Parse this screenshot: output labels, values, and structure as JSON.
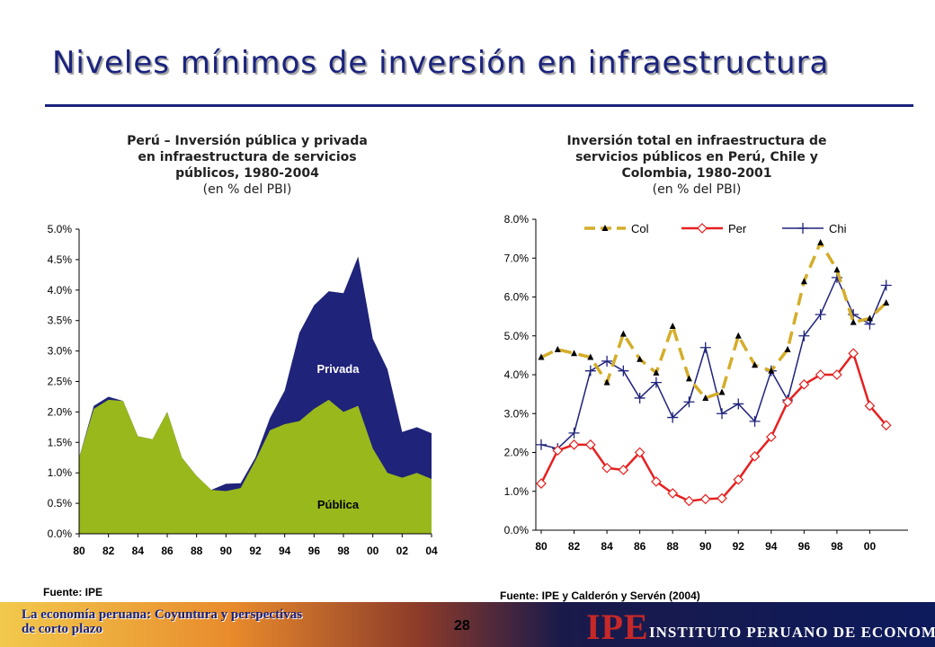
{
  "page": {
    "title": "Niveles mínimos de inversión en infraestructura",
    "footer_left_line1": "La economía peruana: Coyuntura y perspectivas",
    "footer_left_line2": "de corto plazo",
    "page_number": "28",
    "logo": "IPE",
    "institute_name": "INSTITUTO PERUANO DE ECONOMÍA"
  },
  "left_chart": {
    "title_lines": [
      "Perú – Inversión pública y privada",
      "en infraestructura de servicios",
      "públicos, 1980-2004"
    ],
    "unit": "(en % del PBI)",
    "source": "Fuente: IPE"
  },
  "right_chart": {
    "title_lines": [
      "Inversión total en infraestructura de",
      "servicios públicos en Perú, Chile y",
      "Colombia, 1980-2001"
    ],
    "unit": "(en % del PBI)",
    "source": "Fuente: IPE y Calderón y Servén (2004)"
  },
  "colors": {
    "publica": "#99b81c",
    "privada": "#1f237a",
    "col": "#d4ad2a",
    "per": "#e62020",
    "chi": "#1f237a",
    "title": "#1a237e"
  },
  "chart_data": [
    {
      "type": "area",
      "stacked": true,
      "x": [
        1980,
        1981,
        1982,
        1983,
        1984,
        1985,
        1986,
        1987,
        1988,
        1989,
        1990,
        1991,
        1992,
        1993,
        1994,
        1995,
        1996,
        1997,
        1998,
        1999,
        2000,
        2001,
        2002,
        2003,
        2004
      ],
      "x_tick_labels": [
        "80",
        "82",
        "84",
        "86",
        "88",
        "90",
        "92",
        "94",
        "96",
        "98",
        "00",
        "02",
        "04"
      ],
      "series": [
        {
          "name": "Pública",
          "values": [
            1.25,
            2.05,
            2.2,
            2.18,
            1.6,
            1.55,
            2.0,
            1.25,
            0.95,
            0.72,
            0.7,
            0.75,
            1.2,
            1.7,
            1.8,
            1.85,
            2.05,
            2.2,
            2.0,
            2.1,
            1.4,
            1.0,
            0.92,
            1.0,
            0.9
          ]
        },
        {
          "name": "Privada",
          "values": [
            0.0,
            0.05,
            0.05,
            0.0,
            0.0,
            0.0,
            0.0,
            0.0,
            0.0,
            0.0,
            0.12,
            0.08,
            0.05,
            0.2,
            0.55,
            1.45,
            1.7,
            1.78,
            1.95,
            2.45,
            1.8,
            1.7,
            0.75,
            0.75,
            0.75
          ]
        }
      ],
      "ylim": [
        0,
        5
      ],
      "y_tick_labels": [
        "0.0%",
        "0.5%",
        "1.0%",
        "1.5%",
        "2.0%",
        "2.5%",
        "3.0%",
        "3.5%",
        "4.0%",
        "4.5%",
        "5.0%"
      ],
      "annotations": [
        "Privada",
        "Pública"
      ]
    },
    {
      "type": "line",
      "x": [
        1980,
        1981,
        1982,
        1983,
        1984,
        1985,
        1986,
        1987,
        1988,
        1989,
        1990,
        1991,
        1992,
        1993,
        1994,
        1995,
        1996,
        1997,
        1998,
        1999,
        2000,
        2001
      ],
      "x_tick_labels": [
        "80",
        "82",
        "84",
        "86",
        "88",
        "90",
        "92",
        "94",
        "96",
        "98",
        "00"
      ],
      "series": [
        {
          "name": "Col",
          "values": [
            4.45,
            4.65,
            4.55,
            4.45,
            3.8,
            5.05,
            4.4,
            4.05,
            5.25,
            3.9,
            3.4,
            3.55,
            5.0,
            4.25,
            4.1,
            4.65,
            6.4,
            7.4,
            6.7,
            5.35,
            5.45,
            5.85
          ]
        },
        {
          "name": "Per",
          "values": [
            1.2,
            2.05,
            2.2,
            2.2,
            1.6,
            1.55,
            2.0,
            1.25,
            0.95,
            0.75,
            0.8,
            0.82,
            1.3,
            1.9,
            2.4,
            3.3,
            3.75,
            4.0,
            4.0,
            4.55,
            3.2,
            2.7
          ]
        },
        {
          "name": "Chi",
          "values": [
            2.2,
            2.1,
            2.5,
            4.1,
            4.35,
            4.1,
            3.4,
            3.8,
            2.9,
            3.3,
            4.7,
            3.0,
            3.25,
            2.8,
            4.1,
            3.35,
            5.0,
            5.55,
            6.5,
            5.55,
            5.3,
            6.3
          ]
        }
      ],
      "ylim": [
        0,
        8
      ],
      "y_tick_labels": [
        "0.0%",
        "1.0%",
        "2.0%",
        "3.0%",
        "4.0%",
        "5.0%",
        "6.0%",
        "7.0%",
        "8.0%"
      ],
      "legend": "top"
    }
  ]
}
